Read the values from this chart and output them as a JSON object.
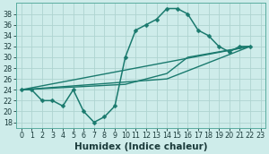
{
  "series": [
    {
      "x": [
        0,
        1,
        2,
        3,
        4,
        5,
        6,
        7,
        8,
        9,
        10,
        11,
        12,
        13,
        14,
        15,
        16,
        17,
        18,
        19,
        20,
        21,
        22
      ],
      "y": [
        24,
        24,
        22,
        22,
        21,
        24,
        20,
        18,
        19,
        21,
        30,
        35,
        36,
        37,
        39,
        39,
        38,
        35,
        34,
        32,
        31,
        32,
        32
      ],
      "color": "#1a7a6e",
      "marker": "D",
      "markersize": 2.5,
      "linewidth": 1.1
    },
    {
      "x": [
        0,
        22
      ],
      "y": [
        24,
        32
      ],
      "color": "#1a7a6e",
      "marker": null,
      "linewidth": 1.0
    },
    {
      "x": [
        0,
        14,
        22
      ],
      "y": [
        24,
        26,
        32
      ],
      "color": "#1a7a6e",
      "marker": null,
      "linewidth": 1.0
    },
    {
      "x": [
        0,
        10,
        14,
        16,
        22
      ],
      "y": [
        24,
        25,
        27,
        30,
        32
      ],
      "color": "#1a7a6e",
      "marker": null,
      "linewidth": 1.0
    }
  ],
  "xlim": [
    -0.5,
    23.5
  ],
  "ylim": [
    17,
    40
  ],
  "yticks": [
    18,
    20,
    22,
    24,
    26,
    28,
    30,
    32,
    34,
    36,
    38
  ],
  "xticks": [
    0,
    1,
    2,
    3,
    4,
    5,
    6,
    7,
    8,
    9,
    10,
    11,
    12,
    13,
    14,
    15,
    16,
    17,
    18,
    19,
    20,
    21,
    22,
    23
  ],
  "xlabel": "Humidex (Indice chaleur)",
  "background_color": "#ceecea",
  "grid_color": "#aed4d0",
  "line_color": "#1a7a6e",
  "tick_fontsize": 5.8,
  "xlabel_fontsize": 7.5,
  "fig_width": 3.0,
  "fig_height": 1.72,
  "dpi": 100
}
